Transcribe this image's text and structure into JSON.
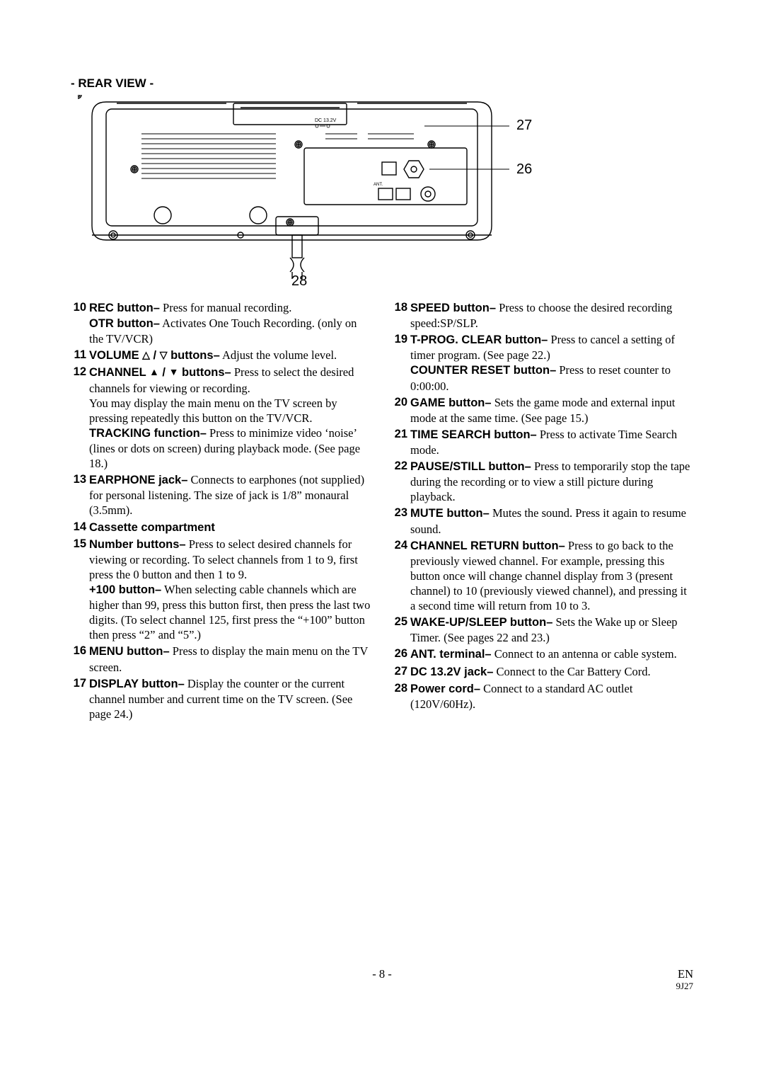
{
  "section_title": "- REAR VIEW -",
  "callouts": {
    "c27": "27",
    "c26": "26",
    "c28": "28"
  },
  "diagram": {
    "label_dc": "DC 13.2V",
    "label_ant": "ANT.",
    "stroke": "#000000",
    "fill": "#ffffff",
    "thin": 1.2,
    "thick": 1.6
  },
  "left_items": [
    {
      "n": "10",
      "parts": [
        {
          "label": "REC button–",
          "text": " Press for manual recording."
        },
        {
          "label": "OTR button–",
          "text": " Activates One Touch Recording. (only on the TV/VCR)"
        }
      ]
    },
    {
      "n": "11",
      "parts": [
        {
          "label": "VOLUME △ / ▽ buttons–",
          "text": " Adjust the volume level."
        }
      ]
    },
    {
      "n": "12",
      "parts": [
        {
          "label": "CHANNEL ▲ / ▼ buttons–",
          "text": " Press to select the desired channels for viewing or recording."
        },
        {
          "label": "",
          "text": "You may display the main menu on the TV screen by pressing repeatedly this button on the TV/VCR."
        },
        {
          "label": "TRACKING function–",
          "text": " Press to minimize video ‘noise’ (lines or dots on screen) during playback mode. (See page 18.)"
        }
      ]
    },
    {
      "n": "13",
      "parts": [
        {
          "label": "EARPHONE jack–",
          "text": " Connects to earphones (not supplied) for personal listening. The size of jack is 1/8” monaural (3.5mm)."
        }
      ]
    },
    {
      "n": "14",
      "parts": [
        {
          "label": "Cassette compartment",
          "text": ""
        }
      ]
    },
    {
      "n": "15",
      "parts": [
        {
          "label": "Number buttons–",
          "text": " Press to select desired channels for viewing or recording. To select channels from 1 to 9, first press the 0 button and then 1 to 9."
        },
        {
          "label": "+100 button–",
          "text": " When selecting cable channels which are higher than 99, press this button first, then press the last two digits. (To select channel 125, first press the “+100” button then press “2” and “5”.)"
        }
      ]
    },
    {
      "n": "16",
      "parts": [
        {
          "label": "MENU button–",
          "text": " Press to display the main menu on the TV screen."
        }
      ]
    },
    {
      "n": "17",
      "parts": [
        {
          "label": "DISPLAY button–",
          "text": " Display the counter or the current channel number and current time on the TV screen. (See page 24.)"
        }
      ]
    }
  ],
  "right_items": [
    {
      "n": "18",
      "parts": [
        {
          "label": "SPEED button–",
          "text": " Press to choose the desired recording speed:SP/SLP."
        }
      ]
    },
    {
      "n": "19",
      "parts": [
        {
          "label": "T-PROG. CLEAR button–",
          "text": " Press to cancel a setting of timer program. (See page 22.)"
        },
        {
          "label": "COUNTER RESET button–",
          "text": " Press to reset counter to 0:00:00."
        }
      ]
    },
    {
      "n": "20",
      "parts": [
        {
          "label": "GAME button–",
          "text": " Sets the game mode and external input mode at the same time. (See page 15.)"
        }
      ]
    },
    {
      "n": "21",
      "parts": [
        {
          "label": "TIME SEARCH button–",
          "text": " Press to activate Time Search mode."
        }
      ]
    },
    {
      "n": "22",
      "parts": [
        {
          "label": "PAUSE/STILL button–",
          "text": " Press to temporarily stop the tape during the recording or to view a still picture during playback."
        }
      ]
    },
    {
      "n": "23",
      "parts": [
        {
          "label": "MUTE button–",
          "text": " Mutes the  sound. Press it again to resume sound."
        }
      ]
    },
    {
      "n": "24",
      "parts": [
        {
          "label": "CHANNEL RETURN button–",
          "text": " Press to go back to the previously viewed channel. For example, pressing this button once will change channel display from 3 (present channel) to 10 (previously viewed channel), and pressing it a second time will return from 10 to 3."
        }
      ]
    },
    {
      "n": "25",
      "parts": [
        {
          "label": "WAKE-UP/SLEEP button–",
          "text": " Sets the Wake up or Sleep Timer. (See pages 22 and 23.)"
        }
      ]
    },
    {
      "n": "26",
      "parts": [
        {
          "label": "ANT. terminal–",
          "text": " Connect to an antenna or cable system."
        }
      ]
    },
    {
      "n": "27",
      "parts": [
        {
          "label": "DC 13.2V jack–",
          "text": " Connect to the Car Battery Cord."
        }
      ]
    },
    {
      "n": "28",
      "parts": [
        {
          "label": "Power cord–",
          "text": " Connect to a standard AC outlet (120V/60Hz)."
        }
      ]
    }
  ],
  "footer": {
    "page": "- 8 -",
    "lang": "EN",
    "code": "9J27"
  }
}
